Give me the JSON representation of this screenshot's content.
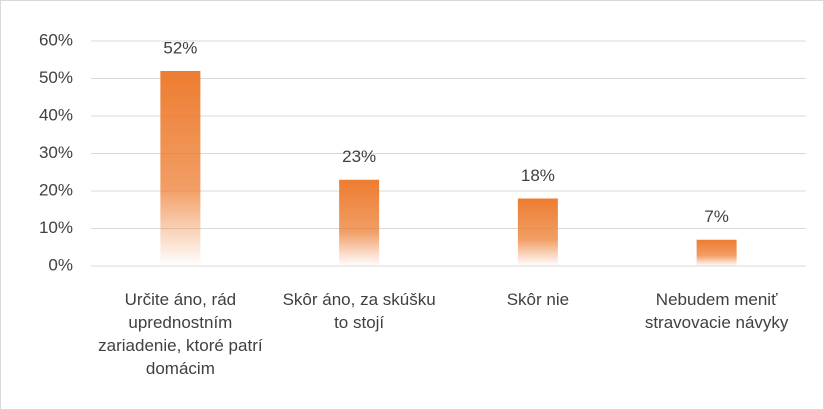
{
  "chart_data": {
    "type": "bar",
    "categories": [
      "Určite áno, rád uprednostním zariadenie, ktoré patrí domácim",
      "Skôr áno, za skúšku to stojí",
      "Skôr nie",
      "Nebudem meniť stravovacie návyky"
    ],
    "values": [
      52,
      23,
      18,
      7
    ],
    "value_labels": [
      "52%",
      "23%",
      "18%",
      "7%"
    ],
    "color": "#ed7d31",
    "ylim": [
      0,
      60
    ],
    "yticks": [
      {
        "value": 0,
        "label": "0%"
      },
      {
        "value": 10,
        "label": "10%"
      },
      {
        "value": 20,
        "label": "20%"
      },
      {
        "value": 30,
        "label": "30%"
      },
      {
        "value": 40,
        "label": "40%"
      },
      {
        "value": 50,
        "label": "50%"
      },
      {
        "value": 60,
        "label": "60%"
      }
    ],
    "grid": true
  }
}
